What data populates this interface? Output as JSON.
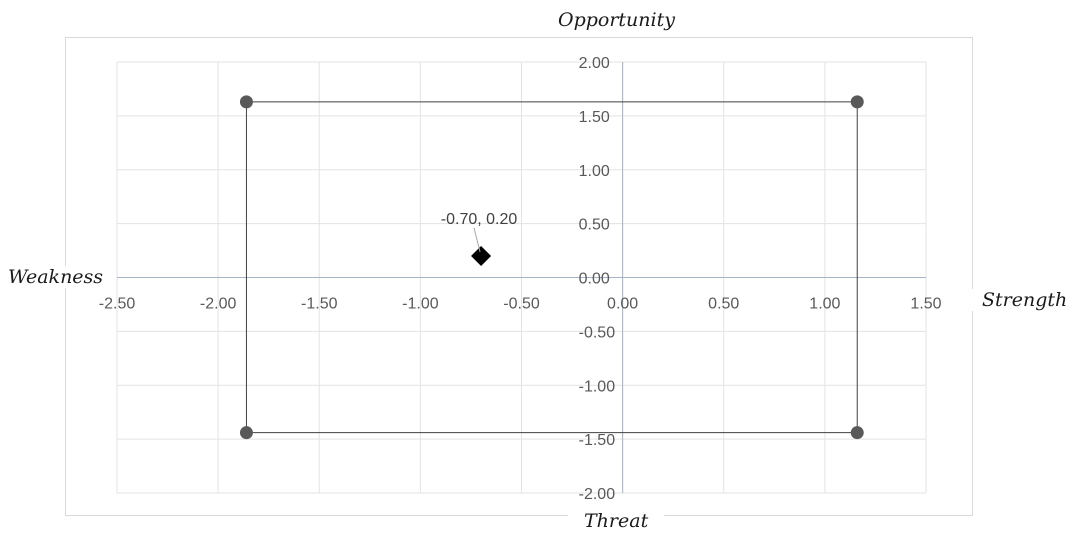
{
  "chart_data": {
    "type": "scatter",
    "title": "",
    "quadrant_labels": {
      "top": "Opportunity",
      "bottom": "Threat",
      "left": "Weakness",
      "right": "Strength"
    },
    "xlim": [
      -2.5,
      1.5
    ],
    "ylim": [
      -2.0,
      2.0
    ],
    "x_ticks": [
      "-2.50",
      "-2.00",
      "-1.50",
      "-1.00",
      "-0.50",
      "0.00",
      "0.50",
      "1.00",
      "1.50"
    ],
    "y_ticks": [
      "2.00",
      "1.50",
      "1.00",
      "0.50",
      "0.00",
      "-0.50",
      "-1.00",
      "-1.50",
      "-2.00"
    ],
    "x_tick_values": [
      -2.5,
      -2.0,
      -1.5,
      -1.0,
      -0.5,
      0.0,
      0.5,
      1.0,
      1.5
    ],
    "y_tick_values": [
      2.0,
      1.5,
      1.0,
      0.5,
      0.0,
      -0.5,
      -1.0,
      -1.5,
      -2.0
    ],
    "grid": true,
    "series": [
      {
        "marker": "circle",
        "color": "#595959",
        "connected": true,
        "points": [
          {
            "x": -1.86,
            "y": 1.63
          },
          {
            "x": 1.16,
            "y": 1.63
          },
          {
            "x": 1.16,
            "y": -1.44
          },
          {
            "x": -1.86,
            "y": -1.44
          }
        ]
      },
      {
        "marker": "diamond",
        "color": "#000000",
        "connected": false,
        "points": [
          {
            "x": -0.7,
            "y": 0.2,
            "label": "-0.70, 0.20"
          }
        ]
      }
    ]
  }
}
